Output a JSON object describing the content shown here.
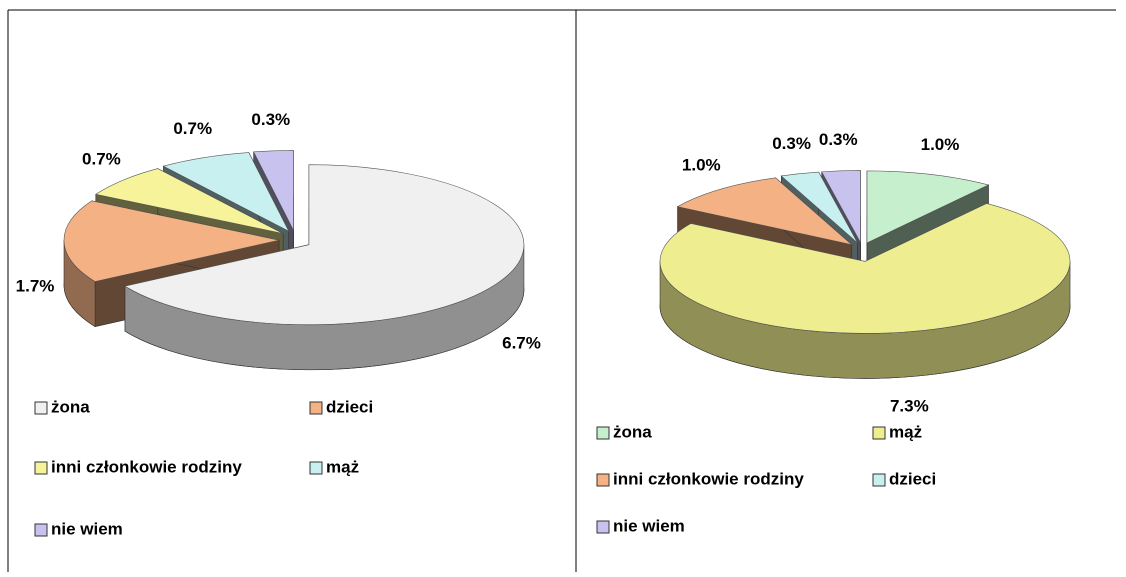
{
  "chart_data": [
    {
      "type": "pie",
      "categories": [
        "żona",
        "dzieci",
        "inni członkowie rodziny",
        "mąż",
        "nie wiem"
      ],
      "values": [
        6.7,
        1.7,
        0.7,
        0.7,
        0.3
      ],
      "value_labels": [
        "6.7%",
        "1.7%",
        "0.7%",
        "0.7%",
        "0.3%"
      ],
      "colors": [
        "#f0f0f0",
        "#f4b183",
        "#f6f39a",
        "#c8f0f0",
        "#c7c3ee"
      ]
    },
    {
      "type": "pie",
      "categories": [
        "żona",
        "mąż",
        "inni członkowie rodziny",
        "dzieci",
        "nie wiem"
      ],
      "values": [
        1.0,
        7.3,
        1.0,
        0.3,
        0.3
      ],
      "value_labels": [
        "1.0%",
        "7.3%",
        "1.0%",
        "0.3%",
        "0.3%"
      ],
      "colors": [
        "#c6efce",
        "#eeee90",
        "#f4b183",
        "#c8f0f0",
        "#c7c3ee"
      ]
    }
  ]
}
